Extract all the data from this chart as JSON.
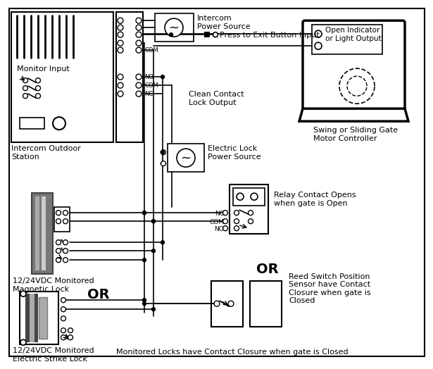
{
  "bg_color": "#ffffff",
  "gray_dark": "#444444",
  "gray_mid": "#777777",
  "gray_light": "#aaaaaa",
  "labels": {
    "monitor_input": "Monitor Input",
    "intercom_outdoor": "Intercom Outdoor\nStation",
    "intercom_ps": "Intercom\nPower Source",
    "press_exit": "Press to Exit Button Input",
    "clean_contact": "Clean Contact\nLock Output",
    "electric_lock_ps": "Electric Lock\nPower Source",
    "magnetic_lock": "12/24VDC Monitored\nMagnetic Lock",
    "or1": "OR",
    "electric_strike": "12/24VDC Monitored\nElectric Strike Lock",
    "relay_contact": "Relay Contact Opens\nwhen gate is Open",
    "swing_gate": "Swing or Sliding Gate\nMotor Controller",
    "open_indicator": "Open Indicator\nor Light Output",
    "or2": "OR",
    "reed_switch": "Reed Switch Position\nSensor have Contact\nClosure when gate is\nClosed",
    "footer": "Monitored Locks have Contact Closure when gate is Closed",
    "nc": "NC",
    "com": "COM",
    "no": "NO"
  }
}
